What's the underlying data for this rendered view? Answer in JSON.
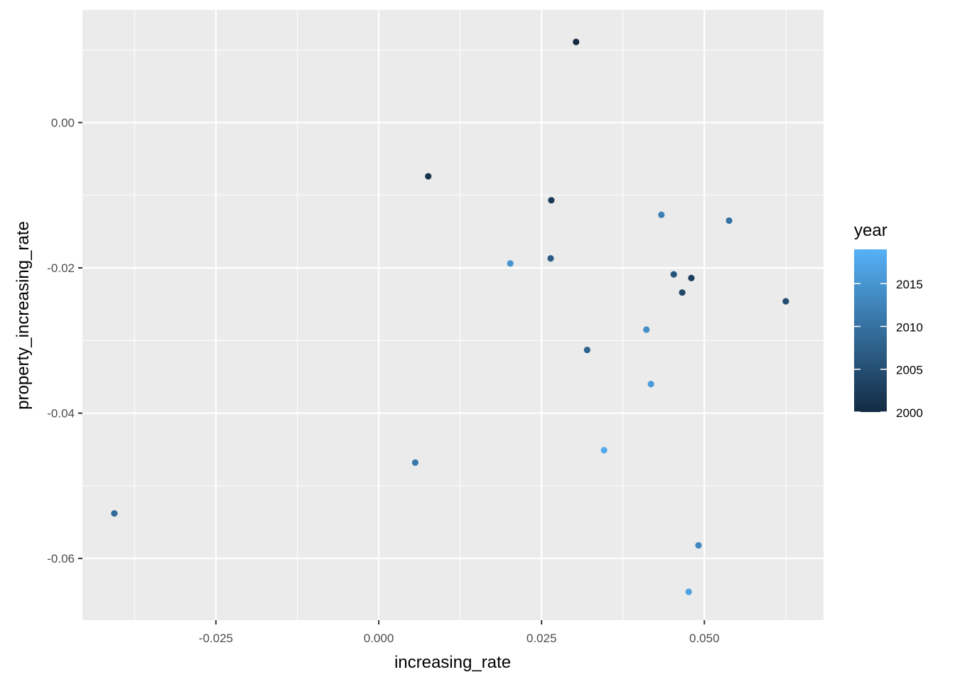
{
  "chart_data": {
    "type": "scatter",
    "title": "",
    "xlabel": "increasing_rate",
    "ylabel": "property_increasing_rate",
    "xlim": [
      -0.0455,
      0.0683
    ],
    "ylim": [
      -0.0685,
      0.0155
    ],
    "x_ticks": [
      {
        "value": -0.025,
        "label": "-0.025"
      },
      {
        "value": 0.0,
        "label": "0.000"
      },
      {
        "value": 0.025,
        "label": "0.025"
      },
      {
        "value": 0.05,
        "label": "0.050"
      }
    ],
    "y_ticks": [
      {
        "value": 0.0,
        "label": "0.00"
      },
      {
        "value": -0.02,
        "label": "-0.02"
      },
      {
        "value": -0.04,
        "label": "-0.04"
      },
      {
        "value": -0.06,
        "label": "-0.06"
      }
    ],
    "grid": true,
    "panel_background": "#ebebeb",
    "grid_color": "#ffffff",
    "legend": {
      "title": "year",
      "position": "right",
      "range": [
        2000,
        2019
      ],
      "low_color": "#132b43",
      "high_color": "#56b1f7",
      "breaks": [
        {
          "value": 2015,
          "label": "2015"
        },
        {
          "value": 2010,
          "label": "2010"
        },
        {
          "value": 2005,
          "label": "2005"
        },
        {
          "value": 2000,
          "label": "2000"
        }
      ]
    },
    "points": [
      {
        "x": 0.0303,
        "y": 0.0111,
        "year": 2000
      },
      {
        "x": 0.0076,
        "y": -0.0074,
        "year": 2001
      },
      {
        "x": 0.0265,
        "y": -0.0107,
        "year": 2002
      },
      {
        "x": 0.048,
        "y": -0.0214,
        "year": 2003
      },
      {
        "x": 0.0466,
        "y": -0.0234,
        "year": 2004
      },
      {
        "x": 0.0625,
        "y": -0.0246,
        "year": 2005
      },
      {
        "x": 0.0453,
        "y": -0.0209,
        "year": 2006
      },
      {
        "x": 0.0264,
        "y": -0.0187,
        "year": 2007
      },
      {
        "x": 0.032,
        "y": -0.0313,
        "year": 2008
      },
      {
        "x": -0.0406,
        "y": -0.0538,
        "year": 2009
      },
      {
        "x": 0.0538,
        "y": -0.0135,
        "year": 2010
      },
      {
        "x": 0.0056,
        "y": -0.0468,
        "year": 2011
      },
      {
        "x": 0.0434,
        "y": -0.0127,
        "year": 2012
      },
      {
        "x": 0.0491,
        "y": -0.0582,
        "year": 2013
      },
      {
        "x": 0.0411,
        "y": -0.0285,
        "year": 2014
      },
      {
        "x": 0.0202,
        "y": -0.0194,
        "year": 2015
      },
      {
        "x": 0.0418,
        "y": -0.036,
        "year": 2016
      },
      {
        "x": 0.0476,
        "y": -0.0646,
        "year": 2017
      },
      {
        "x": 0.0346,
        "y": -0.0451,
        "year": 2018
      }
    ]
  }
}
